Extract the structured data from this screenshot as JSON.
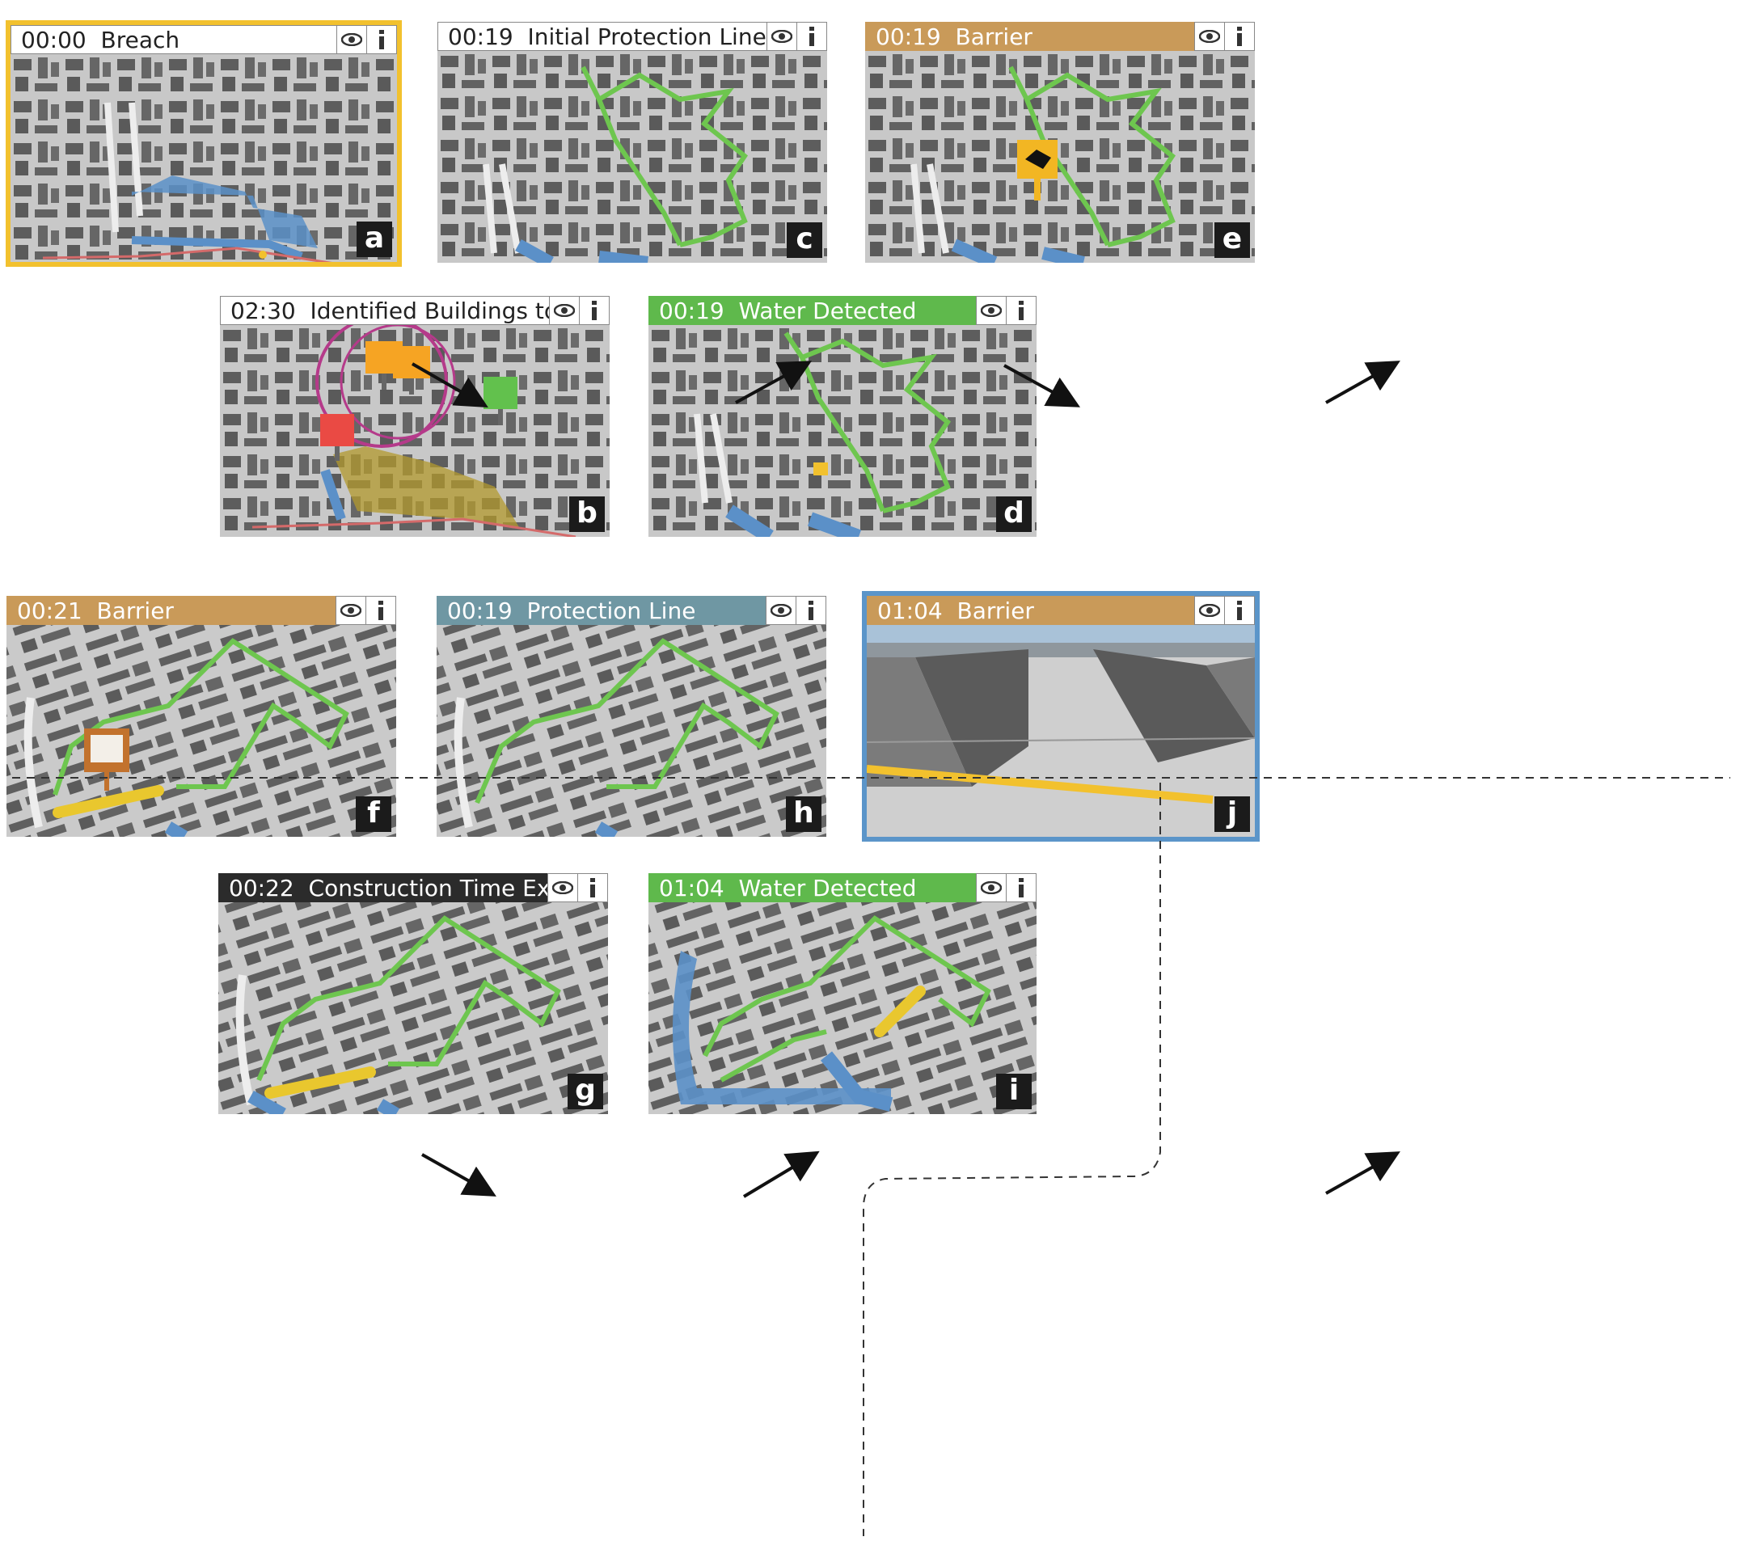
{
  "panels": [
    {
      "letter": "a",
      "time": "00:00",
      "label": "Breach"
    },
    {
      "letter": "b",
      "time": "02:30",
      "label": "Identified Buildings to Protect"
    },
    {
      "letter": "c",
      "time": "00:19",
      "label": "Initial Protection Line"
    },
    {
      "letter": "d",
      "time": "00:19",
      "label": "Water Detected"
    },
    {
      "letter": "e",
      "time": "00:19",
      "label": "Barrier"
    },
    {
      "letter": "f",
      "time": "00:21",
      "label": "Barrier"
    },
    {
      "letter": "g",
      "time": "00:22",
      "label": "Construction Time Exceeded"
    },
    {
      "letter": "h",
      "time": "00:19",
      "label": "Protection Line"
    },
    {
      "letter": "i",
      "time": "01:04",
      "label": "Water Detected"
    },
    {
      "letter": "j",
      "time": "01:04",
      "label": "Barrier"
    }
  ],
  "title_colors": {
    "white": "#ffffff",
    "barrier": "#c99a59",
    "water_detected": "#5fb94c",
    "protection_line": "#6f97a3",
    "construction_exceeded": "#2b2b2b",
    "highlight_a": "#f2c12e",
    "highlight_j": "#5b95c9"
  },
  "icons": {
    "visibility": "eye-icon",
    "info": "info-icon"
  }
}
